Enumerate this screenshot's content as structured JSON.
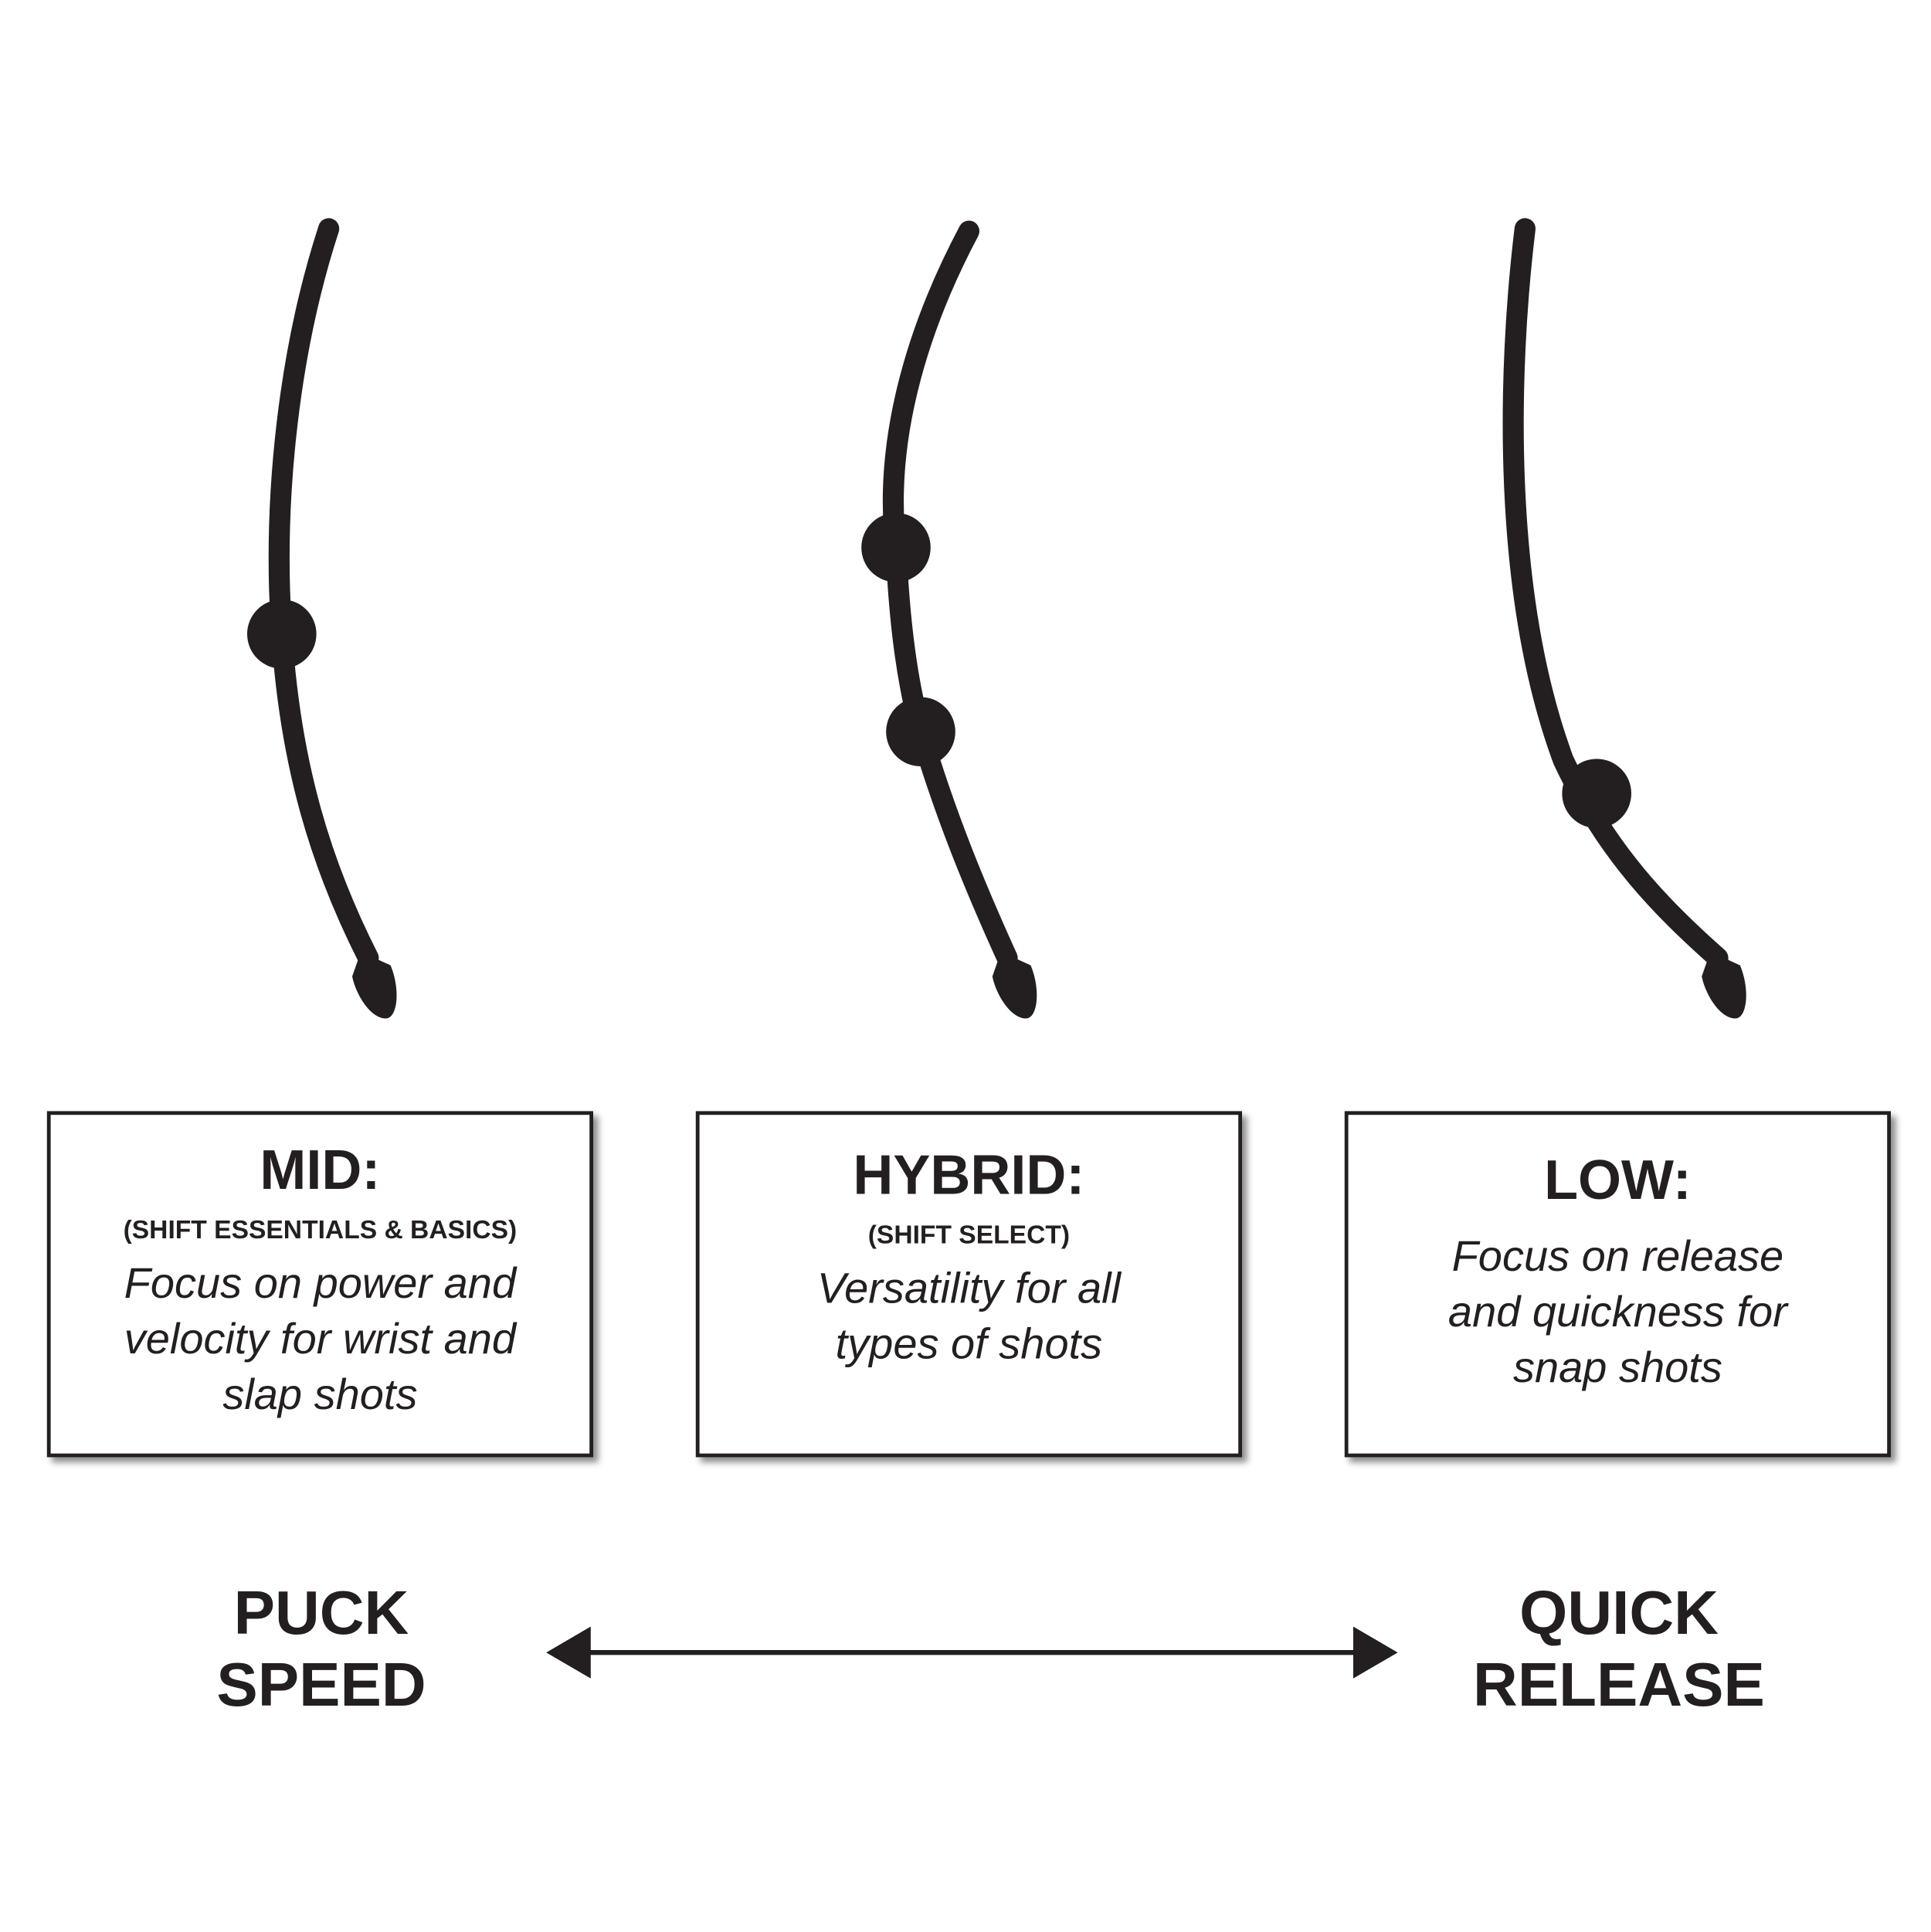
{
  "flex_profiles": [
    {
      "title": "MID:",
      "subtitle": "(SHIFT ESSENTIALS & BASICS)",
      "description": "Focus on power and velocity for wrist and slap shots"
    },
    {
      "title": "HYBRID:",
      "subtitle": "(SHIFT SELECT)",
      "description": "Versatility for all types of shots"
    },
    {
      "title": "LOW:",
      "subtitle": "",
      "description": "Focus on release and quickness for snap shots"
    }
  ],
  "scale": {
    "left_label": "PUCK SPEED",
    "right_label": "QUICK RELEASE"
  },
  "colors": {
    "ink": "#231f20"
  }
}
